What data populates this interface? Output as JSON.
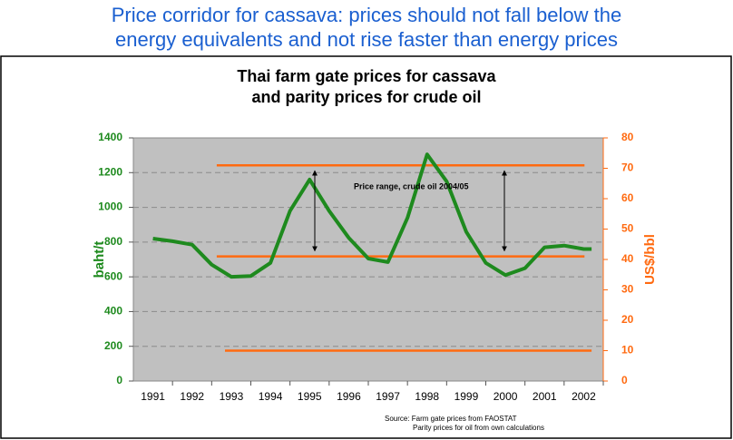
{
  "header": [
    "Price corridor for cassava: prices should not fall below the",
    "energy equivalents and not rise faster than energy prices"
  ],
  "chart_data": {
    "type": "line",
    "title": [
      "Thai farm gate prices for cassava",
      "and parity prices for crude oil"
    ],
    "ylabel": "baht/t",
    "y2label": "US$/bbl",
    "annotation": "Price range, crude oil 2004/05",
    "source": [
      "Source:  Farm gate prices from FAOSTAT",
      "Parity prices for oil from own calculations"
    ],
    "xlim": [
      1990.5,
      2002.5
    ],
    "xticks": [
      1991,
      1992,
      1993,
      1994,
      1995,
      1996,
      1997,
      1998,
      1999,
      2000,
      2001,
      2002
    ],
    "ylim": [
      0,
      1400
    ],
    "yticks": [
      0,
      200,
      400,
      600,
      800,
      1000,
      1200,
      1400
    ],
    "y2lim": [
      0,
      80
    ],
    "y2ticks": [
      0,
      10,
      20,
      30,
      40,
      50,
      60,
      70,
      80
    ],
    "grid": true,
    "series": [
      {
        "color": "#1e8a1e",
        "axis": "y",
        "x": [
          1991,
          1991.5,
          1992,
          1992.5,
          1993,
          1993.5,
          1994,
          1994.5,
          1995,
          1995.5,
          1996,
          1996.5,
          1997,
          1997.5,
          1998,
          1998.5,
          1999,
          1999.5,
          2000,
          2000.5,
          2001,
          2001.5,
          2002,
          2002.2
        ],
        "values": [
          820,
          805,
          785,
          670,
          600,
          605,
          680,
          980,
          1160,
          980,
          825,
          705,
          685,
          940,
          1305,
          1150,
          860,
          680,
          610,
          650,
          770,
          780,
          760,
          760
        ]
      },
      {
        "color": "#ff6a10",
        "axis": "y2",
        "x": [
          1992.63,
          2002.02
        ],
        "values": [
          71,
          71
        ]
      },
      {
        "color": "#ff6a10",
        "axis": "y2",
        "x": [
          1992.63,
          2002.02
        ],
        "values": [
          41,
          41
        ]
      },
      {
        "color": "#ff6a10",
        "axis": "y2",
        "x": [
          1992.84,
          2002.2
        ],
        "values": [
          10,
          10
        ]
      }
    ]
  }
}
